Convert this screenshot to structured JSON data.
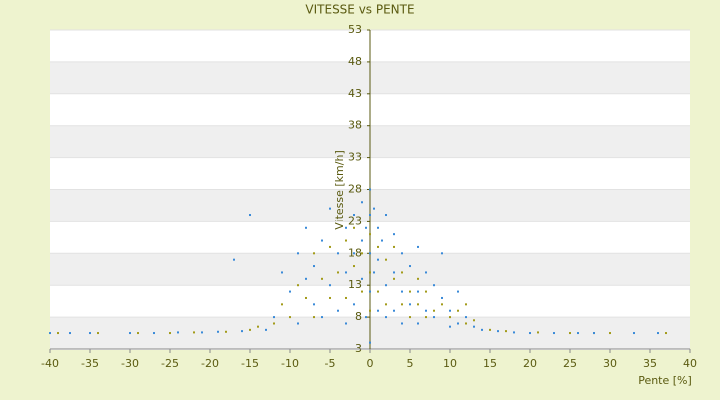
{
  "chart_data": {
    "type": "scatter",
    "title": "VITESSE vs PENTE",
    "x_label": "Pente [%]",
    "y_label": "Vitesse [km/h]",
    "xlim": [
      -40,
      40
    ],
    "xticks": [
      -40,
      -35,
      -30,
      -25,
      -20,
      -15,
      -10,
      -5,
      0,
      5,
      10,
      15,
      20,
      25,
      30,
      35,
      40
    ],
    "ylim": [
      3,
      53
    ],
    "yticks": [
      3,
      8,
      13,
      18,
      23,
      28,
      33,
      38,
      43,
      48,
      53
    ],
    "grid": true,
    "series": [
      {
        "color": "#a39b1a",
        "x": [
          -39,
          -34,
          -29,
          -25,
          -22,
          -18,
          -15,
          -14,
          -12,
          -11,
          -10,
          -9,
          -8,
          -7,
          -7,
          -6,
          -5,
          -5,
          -4,
          -3,
          -3,
          -2,
          -2,
          -1,
          -1,
          0,
          0,
          0,
          1,
          1,
          2,
          2,
          3,
          3,
          4,
          4,
          5,
          5,
          6,
          6,
          7,
          7,
          8,
          9,
          10,
          11,
          12,
          12,
          13,
          15,
          17,
          21,
          25,
          28,
          30,
          37
        ],
        "values": [
          5.5,
          5.5,
          5.5,
          5.5,
          5.6,
          5.7,
          6,
          6.5,
          7,
          10,
          8,
          13,
          11,
          18,
          8,
          14,
          11,
          19,
          15,
          20,
          11,
          16,
          22,
          18,
          12,
          21,
          15,
          9,
          19,
          12,
          17,
          10,
          14,
          19,
          10,
          15,
          12,
          8,
          10,
          14,
          8,
          12,
          9,
          10,
          8,
          9,
          10,
          7,
          7.5,
          6,
          5.8,
          5.6,
          5.5,
          5.5,
          5.5,
          5.5
        ]
      },
      {
        "color": "#3a8ad8",
        "x": [
          -40,
          -37.5,
          -35,
          -30,
          -27,
          -24,
          -21,
          -19,
          -17,
          -15,
          -16,
          -13,
          -12,
          -11,
          -10,
          -9,
          -9,
          -8,
          -8,
          -7,
          -7,
          -6,
          -6,
          -5,
          -5,
          -4,
          -4,
          -3,
          -3,
          -3,
          -2,
          -2,
          -2,
          -1,
          -1,
          -1,
          -0.5,
          -0.5,
          0,
          0,
          0,
          0,
          0,
          0.5,
          0.5,
          1,
          1,
          1,
          1.5,
          2,
          2,
          2,
          3,
          3,
          3,
          4,
          4,
          4,
          5,
          5,
          6,
          6,
          6,
          7,
          7,
          8,
          8,
          9,
          9,
          10,
          10,
          11,
          11,
          12,
          13,
          14,
          16,
          18,
          20,
          23,
          26,
          28,
          33,
          36
        ],
        "values": [
          5.5,
          5.5,
          5.5,
          5.5,
          5.5,
          5.6,
          5.6,
          5.7,
          17,
          24,
          5.8,
          6,
          8,
          15,
          12,
          18,
          7,
          14,
          22,
          10,
          16,
          20,
          8,
          25,
          13,
          18,
          9,
          22,
          15,
          7,
          24,
          18,
          10,
          26,
          20,
          14,
          22,
          8,
          28,
          24,
          18,
          12,
          4,
          25,
          15,
          22,
          17,
          9,
          20,
          24,
          13,
          8,
          21,
          15,
          9,
          18,
          12,
          7,
          16,
          10,
          19,
          12,
          7,
          15,
          9,
          13,
          8,
          18,
          11,
          9,
          6.5,
          12,
          7,
          8,
          6.5,
          6,
          5.8,
          5.6,
          5.5,
          5.5,
          5.5,
          5.5,
          5.5,
          5.5
        ]
      }
    ]
  }
}
